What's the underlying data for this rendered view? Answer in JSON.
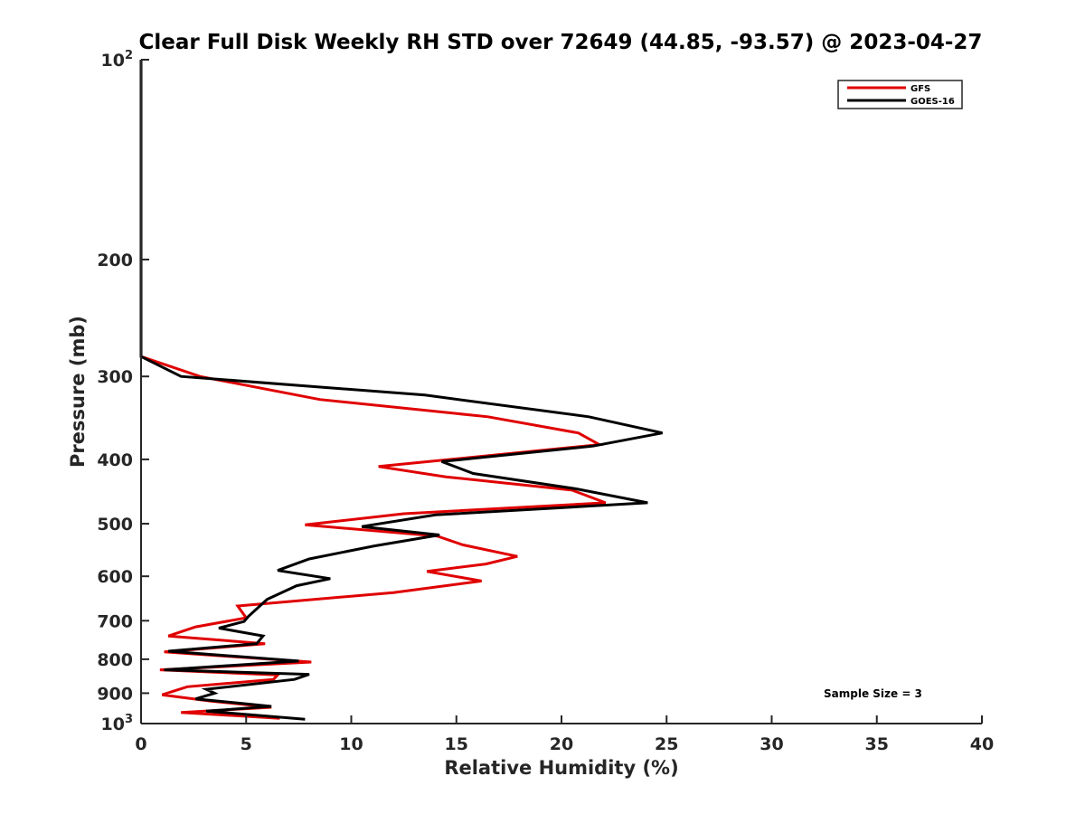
{
  "chart_data": {
    "type": "line",
    "title": "Clear Full Disk Weekly RH STD over 72649 (44.85, -93.57) @ 2023-04-27",
    "xlabel": "Relative Humidity (%)",
    "ylabel": "Pressure (mb)",
    "xlim": [
      0,
      40
    ],
    "ylim": [
      100,
      1000
    ],
    "y_scale": "log",
    "y_reversed": true,
    "x_ticks": [
      0,
      5,
      10,
      15,
      20,
      25,
      30,
      35,
      40
    ],
    "x_tick_labels": [
      "0",
      "5",
      "10",
      "15",
      "20",
      "25",
      "30",
      "35",
      "40"
    ],
    "y_ticks": [
      {
        "value": 100,
        "label": "10",
        "sup": "2"
      },
      {
        "value": 200,
        "label": "200",
        "sup": ""
      },
      {
        "value": 300,
        "label": "300",
        "sup": ""
      },
      {
        "value": 400,
        "label": "400",
        "sup": ""
      },
      {
        "value": 500,
        "label": "500",
        "sup": ""
      },
      {
        "value": 600,
        "label": "600",
        "sup": ""
      },
      {
        "value": 700,
        "label": "700",
        "sup": ""
      },
      {
        "value": 800,
        "label": "800",
        "sup": ""
      },
      {
        "value": 900,
        "label": "900",
        "sup": ""
      },
      {
        "value": 1000,
        "label": "10",
        "sup": "3"
      }
    ],
    "grid": false,
    "legend_position": "top-right",
    "annotation": "Sample Size = 3",
    "series": [
      {
        "name": "GFS",
        "color": "#e00000",
        "points": [
          [
            0,
            100
          ],
          [
            0,
            280
          ],
          [
            2.8,
            300
          ],
          [
            8.5,
            325
          ],
          [
            16.5,
            345
          ],
          [
            20.8,
            365
          ],
          [
            21.8,
            380
          ],
          [
            11.3,
            410
          ],
          [
            14.5,
            425
          ],
          [
            20.5,
            445
          ],
          [
            22.1,
            465
          ],
          [
            12.5,
            483
          ],
          [
            7.8,
            502
          ],
          [
            14.1,
            522
          ],
          [
            15.3,
            538
          ],
          [
            17.9,
            560
          ],
          [
            16.4,
            575
          ],
          [
            13.6,
            590
          ],
          [
            16.2,
            610
          ],
          [
            12.0,
            635
          ],
          [
            4.6,
            665
          ],
          [
            5.0,
            693
          ],
          [
            2.6,
            715
          ],
          [
            1.3,
            738
          ],
          [
            5.9,
            758
          ],
          [
            1.1,
            780
          ],
          [
            8.1,
            808
          ],
          [
            0.9,
            830
          ],
          [
            6.5,
            845
          ],
          [
            6.3,
            858
          ],
          [
            2.2,
            880
          ],
          [
            1.0,
            905
          ],
          [
            3.3,
            925
          ],
          [
            6.2,
            945
          ],
          [
            1.9,
            962
          ],
          [
            6.6,
            982
          ]
        ]
      },
      {
        "name": "GOES-16",
        "color": "#000000",
        "points": [
          [
            0,
            100
          ],
          [
            0,
            280
          ],
          [
            1.9,
            300
          ],
          [
            13.5,
            320
          ],
          [
            21.3,
            345
          ],
          [
            24.8,
            365
          ],
          [
            21.5,
            382
          ],
          [
            14.3,
            403
          ],
          [
            15.8,
            420
          ],
          [
            20.7,
            443
          ],
          [
            24.1,
            465
          ],
          [
            14.0,
            485
          ],
          [
            10.5,
            505
          ],
          [
            14.2,
            520
          ],
          [
            11.1,
            540
          ],
          [
            8.0,
            565
          ],
          [
            6.5,
            588
          ],
          [
            9.0,
            605
          ],
          [
            7.4,
            620
          ],
          [
            6.0,
            650
          ],
          [
            5.1,
            690
          ],
          [
            4.9,
            702
          ],
          [
            3.7,
            718
          ],
          [
            5.8,
            738
          ],
          [
            5.5,
            758
          ],
          [
            1.3,
            778
          ],
          [
            7.5,
            805
          ],
          [
            1.1,
            830
          ],
          [
            8.0,
            843
          ],
          [
            7.3,
            858
          ],
          [
            3.1,
            888
          ],
          [
            3.5,
            900
          ],
          [
            2.6,
            918
          ],
          [
            6.2,
            942
          ],
          [
            3.1,
            958
          ],
          [
            7.8,
            985
          ]
        ]
      }
    ]
  }
}
